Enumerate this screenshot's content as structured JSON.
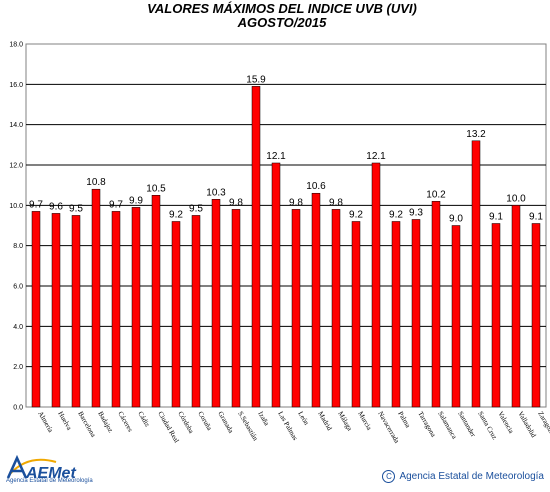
{
  "chart_data": {
    "type": "bar",
    "title": "VALORES MÁXIMOS DEL INDICE UVB (UVI)",
    "subtitle": "AGOSTO/2015",
    "xlabel": "",
    "ylabel": "",
    "ylim": [
      0,
      18
    ],
    "yticks": [
      "0.0",
      "2.0",
      "4.0",
      "6.0",
      "8.0",
      "10.0",
      "12.0",
      "14.0",
      "16.0",
      "18.0"
    ],
    "grid": "horizontal",
    "bar_color": "#ff0000",
    "categories": [
      "Almería",
      "Huelva",
      "Barcelona",
      "Badajoz",
      "Cáceres",
      "Cádiz",
      "Ciudad Real",
      "Córdoba",
      "Coruña",
      "Granada",
      "S.Sebastián",
      "Izaña",
      "Las Palmas",
      "León",
      "Madrid",
      "Málaga",
      "Murcia",
      "Navacerrada",
      "Palma",
      "Tarragona",
      "Salamanca",
      "Santander",
      "Santa Cruz",
      "Valencia",
      "Valladolid",
      "Zaragoza"
    ],
    "values": [
      9.7,
      9.6,
      9.5,
      10.8,
      9.7,
      9.9,
      10.5,
      9.2,
      9.5,
      10.3,
      9.8,
      15.9,
      12.1,
      9.8,
      10.6,
      9.8,
      9.2,
      12.1,
      9.2,
      9.3,
      10.2,
      9.0,
      13.2,
      9.1,
      10.0,
      9.1
    ],
    "labels": [
      "9.7",
      "9.6",
      "9.5",
      "10.8",
      "9.7",
      "9.9",
      "10.5",
      "9.2",
      "9.5",
      "10.3",
      "9.8",
      "15.9",
      "12.1",
      "9.8",
      "10.6",
      "9.8",
      "9.2",
      "12.1",
      "9.2",
      "9.3",
      "10.2",
      "9.0",
      "13.2",
      "9.1",
      "10.0",
      "9.1"
    ]
  },
  "logo": {
    "mark": "AEMet",
    "caption": "Agencia Estatal de Meteorología"
  },
  "credit": {
    "symbol": "C",
    "text": "Agencia Estatal de Meteorología"
  }
}
